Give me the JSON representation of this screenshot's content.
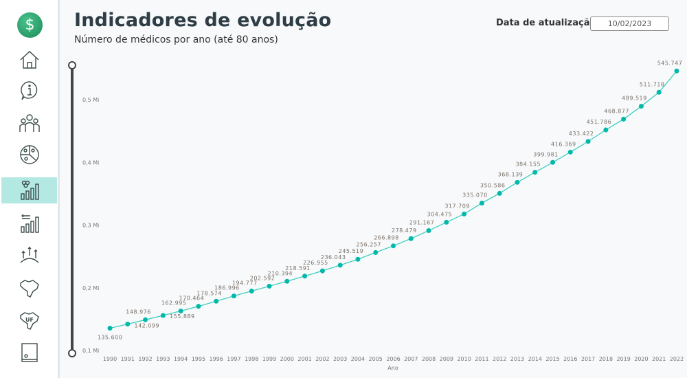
{
  "header": {
    "title": "Indicadores de evolução",
    "subtitle": "Número de médicos por ano (até 80 anos)",
    "update_label": "Data de atualização",
    "update_value": "10/02/2023"
  },
  "sidebar": {
    "logo_icon": "caduceus-icon",
    "items": [
      {
        "icon": "home-icon"
      },
      {
        "icon": "info-icon"
      },
      {
        "icon": "doctors-group-icon"
      },
      {
        "icon": "pie-people-icon"
      },
      {
        "icon": "people-bar-chart-icon",
        "active": true
      },
      {
        "icon": "transfer-bar-chart-icon"
      },
      {
        "icon": "growth-arrows-icon"
      },
      {
        "icon": "brazil-map-icon"
      },
      {
        "icon": "brazil-uf-map-icon",
        "label": "UF"
      },
      {
        "icon": "book-icon"
      }
    ]
  },
  "colors": {
    "line": "#3ecfbf",
    "marker": "#01b8aa",
    "active_nav": "#b3e8e3"
  },
  "chart_data": {
    "type": "line",
    "xlabel": "Ano",
    "ylabel": "",
    "ylim": [
      0.1,
      0.55
    ],
    "yticks": [
      {
        "v": 0.1,
        "label": "0,1 Mi"
      },
      {
        "v": 0.2,
        "label": "0,2 Mi"
      },
      {
        "v": 0.3,
        "label": "0,3 Mi"
      },
      {
        "v": 0.4,
        "label": "0,4 Mi"
      },
      {
        "v": 0.5,
        "label": "0,5 Mi"
      }
    ],
    "grid": false,
    "categories": [
      "1990",
      "1991",
      "1992",
      "1993",
      "1994",
      "1995",
      "1996",
      "1997",
      "1998",
      "1999",
      "2000",
      "2001",
      "2002",
      "2003",
      "2004",
      "2005",
      "2006",
      "2007",
      "2008",
      "2009",
      "2010",
      "2011",
      "2012",
      "2013",
      "2014",
      "2015",
      "2016",
      "2017",
      "2018",
      "2019",
      "2020",
      "2021",
      "2022"
    ],
    "values": [
      135600,
      142099,
      148976,
      155889,
      162995,
      170464,
      178574,
      186996,
      194777,
      202592,
      210394,
      218591,
      226955,
      236043,
      245519,
      256257,
      266898,
      278479,
      291167,
      304475,
      317709,
      335070,
      350586,
      368139,
      384155,
      399981,
      416369,
      433422,
      451786,
      468877,
      489519,
      511718,
      545747
    ],
    "labels": [
      "135.600",
      "142.099",
      "148.976",
      "155.889",
      "162.995",
      "170.464",
      "178.574",
      "186.996",
      "194.777",
      "202.592",
      "210.394",
      "218.591",
      "226.955",
      "236.043",
      "245.519",
      "256.257",
      "266.898",
      "278.479",
      "291.167",
      "304.475",
      "317.709",
      "335.070",
      "350.586",
      "368.139",
      "384.155",
      "399.981",
      "416.369",
      "433.422",
      "451.786",
      "468.877",
      "489.519",
      "511.718",
      "545.747"
    ]
  }
}
